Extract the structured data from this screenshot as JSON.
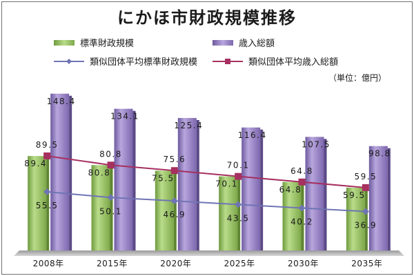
{
  "title": "にかほ市財政規模推移",
  "unit": "（単位：億円）",
  "colors": {
    "bar_standard": "#9cc36a",
    "bar_revenue": "#9a84c8",
    "line_standard": "#6f74b4",
    "line_revenue": "#a63060"
  },
  "legend": {
    "bar_standard": "標準財政規模",
    "bar_revenue": "歳入総額",
    "line_standard": "類似団体平均標準財政規模",
    "line_revenue": "類似団体平均歳入総額"
  },
  "chart_data": {
    "type": "bar",
    "title": "にかほ市財政規模推移",
    "categories": [
      "2008年",
      "2015年",
      "2020年",
      "2025年",
      "2030年",
      "2035年"
    ],
    "series": [
      {
        "name": "標準財政規模",
        "kind": "bar",
        "values": [
          89.4,
          80.8,
          75.5,
          70.1,
          64.8,
          59.5
        ]
      },
      {
        "name": "歳入総額",
        "kind": "bar",
        "values": [
          148.4,
          134.1,
          125.4,
          116.4,
          107.5,
          98.8
        ]
      },
      {
        "name": "類似団体平均標準財政規模",
        "kind": "line",
        "marker": "diamond",
        "values": [
          55.5,
          50.1,
          46.9,
          43.5,
          40.2,
          36.9
        ]
      },
      {
        "name": "類似団体平均歳入総額",
        "kind": "line",
        "marker": "square",
        "values": [
          89.5,
          80.8,
          75.6,
          70.1,
          64.8,
          59.5
        ]
      }
    ],
    "ylim": [
      0,
      160
    ],
    "grid": false,
    "legend_position": "top",
    "unit": "（単位：億円）"
  }
}
